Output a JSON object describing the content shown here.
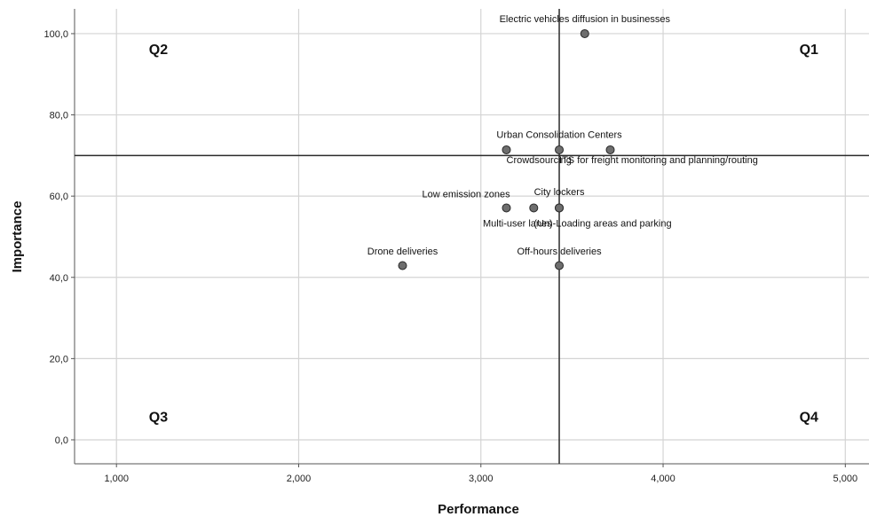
{
  "chart_data": {
    "type": "scatter",
    "xlabel": "Performance",
    "ylabel": "Importance",
    "xlim": [
      0.77,
      5.13
    ],
    "ylim": [
      -5.9,
      106.1
    ],
    "x_ticks": [
      1,
      2,
      3,
      4,
      5
    ],
    "x_tick_labels": [
      "1,000",
      "2,000",
      "3,000",
      "4,000",
      "5,000"
    ],
    "y_ticks": [
      0,
      20,
      40,
      60,
      80,
      100
    ],
    "y_tick_labels": [
      "0,0",
      "20,0",
      "40,0",
      "60,0",
      "80,0",
      "100,0"
    ],
    "grid": true,
    "reference_lines": {
      "x": 3.43,
      "y": 70
    },
    "quadrant_labels": [
      {
        "text": "Q1",
        "x": 4.8,
        "y": 95
      },
      {
        "text": "Q2",
        "x": 1.23,
        "y": 95
      },
      {
        "text": "Q3",
        "x": 1.23,
        "y": 4.5
      },
      {
        "text": "Q4",
        "x": 4.8,
        "y": 4.5
      }
    ],
    "points": [
      {
        "label": "Electric vehicles diffusion in businesses",
        "x": 3.57,
        "y": 100,
        "label_x": 3.57,
        "label_y": 102.8,
        "anchor": "middle"
      },
      {
        "label": "Urban Consolidation Centers",
        "x": 3.43,
        "y": 71.4,
        "label_x": 3.43,
        "label_y": 74.3,
        "anchor": "middle"
      },
      {
        "label": "Crowdsourcing",
        "x": 3.14,
        "y": 71.4,
        "label_x": 3.14,
        "label_y": 68.1,
        "anchor": "start"
      },
      {
        "label": "ITS for freight monitoring and planning/routing",
        "x": 3.71,
        "y": 71.4,
        "label_x": 3.43,
        "label_y": 68.1,
        "anchor": "start"
      },
      {
        "label": "Low emission zones",
        "x": 3.14,
        "y": 57.1,
        "label_x": 3.16,
        "label_y": 59.7,
        "anchor": "end"
      },
      {
        "label": "City lockers",
        "x": 3.43,
        "y": 57.1,
        "label_x": 3.43,
        "label_y": 60.3,
        "anchor": "middle"
      },
      {
        "label": "Multi-user lanes",
        "x": 3.29,
        "y": 57.1,
        "label_x": 3.2,
        "label_y": 52.5,
        "anchor": "middle"
      },
      {
        "label": "(Un)-Loading areas and parking",
        "x": 3.43,
        "y": 57.1,
        "label_x": 3.29,
        "label_y": 52.5,
        "anchor": "start"
      },
      {
        "label": "Drone deliveries",
        "x": 2.57,
        "y": 42.9,
        "label_x": 2.57,
        "label_y": 45.6,
        "anchor": "middle"
      },
      {
        "label": "Off-hours deliveries",
        "x": 3.43,
        "y": 42.9,
        "label_x": 3.43,
        "label_y": 45.6,
        "anchor": "middle"
      }
    ],
    "colors": {
      "point": "#6e6e6e",
      "point_stroke": "#2a2a2a",
      "grid": "#d4d4d4",
      "ref_line": "#2b2b2b"
    }
  }
}
